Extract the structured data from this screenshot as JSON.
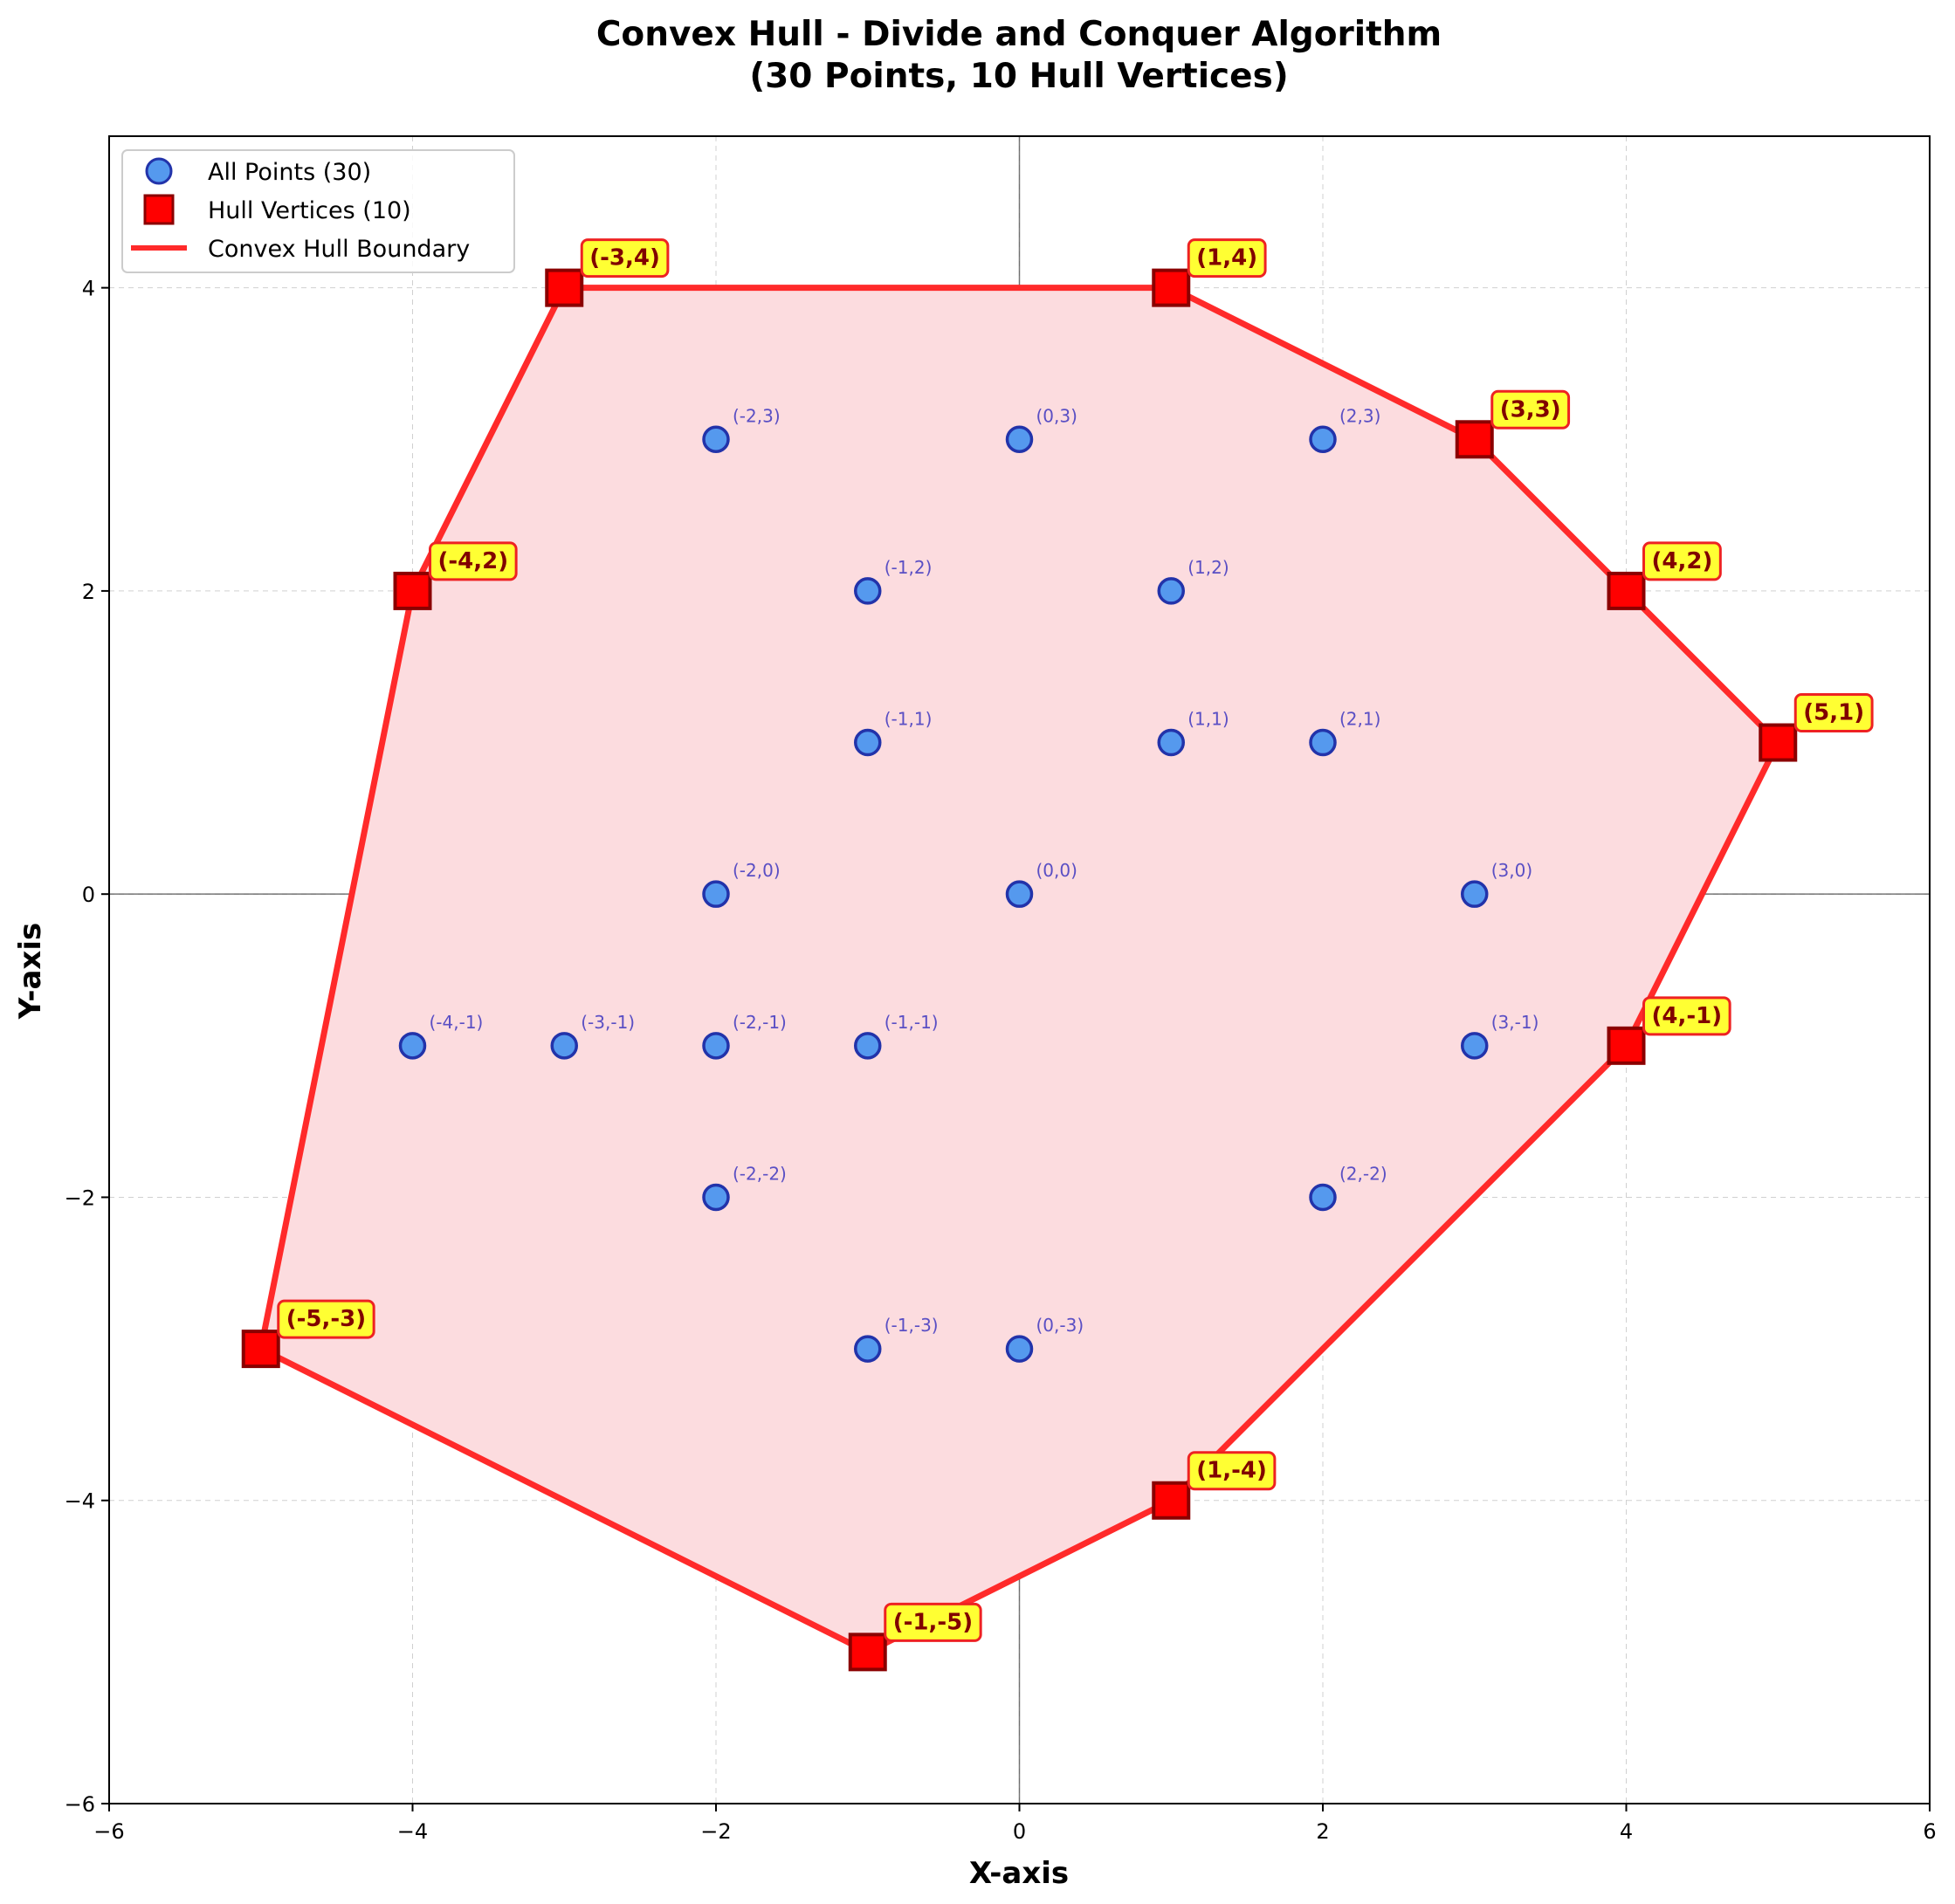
{
  "chart_data": {
    "type": "scatter",
    "title": "Convex Hull - Divide and Conquer Algorithm",
    "subtitle": "(30 Points, 10 Hull Vertices)",
    "xlabel": "X-axis",
    "ylabel": "Y-axis",
    "xlim": [
      -6,
      6
    ],
    "ylim": [
      -6,
      5
    ],
    "xticks": [
      -6,
      -4,
      -2,
      0,
      2,
      4,
      6
    ],
    "yticks": [
      -6,
      -4,
      -2,
      0,
      2,
      4
    ],
    "xtick_labels": [
      "−6",
      "−4",
      "−2",
      "0",
      "2",
      "4",
      "6"
    ],
    "ytick_labels": [
      "−6",
      "−4",
      "−2",
      "0",
      "2",
      "4"
    ],
    "grid": true,
    "legend_position": "top-left",
    "legend": [
      {
        "label": "All Points (30)",
        "marker": "circle"
      },
      {
        "label": "Hull Vertices (10)",
        "marker": "square"
      },
      {
        "label": "Convex Hull Boundary",
        "marker": "line"
      }
    ],
    "colors": {
      "point_fill": "#5599ee",
      "point_edge": "#2233aa",
      "hull_fill": "#ff0000",
      "hull_edge": "#8b0000",
      "boundary": "#ff2a2a",
      "hull_area": "#fcdcdf",
      "hull_label_bg": "#ffff33",
      "hull_label_border": "#ee2222",
      "hull_label_text": "#800000",
      "point_label_text": "#5a4fc4"
    },
    "points": [
      {
        "x": -2,
        "y": 3,
        "label": "(-2,3)"
      },
      {
        "x": 0,
        "y": 3,
        "label": "(0,3)"
      },
      {
        "x": 2,
        "y": 3,
        "label": "(2,3)"
      },
      {
        "x": -1,
        "y": 2,
        "label": "(-1,2)"
      },
      {
        "x": 1,
        "y": 2,
        "label": "(1,2)"
      },
      {
        "x": -1,
        "y": 1,
        "label": "(-1,1)"
      },
      {
        "x": 1,
        "y": 1,
        "label": "(1,1)"
      },
      {
        "x": 2,
        "y": 1,
        "label": "(2,1)"
      },
      {
        "x": -2,
        "y": 0,
        "label": "(-2,0)"
      },
      {
        "x": 0,
        "y": 0,
        "label": "(0,0)"
      },
      {
        "x": 3,
        "y": 0,
        "label": "(3,0)"
      },
      {
        "x": -4,
        "y": -1,
        "label": "(-4,-1)"
      },
      {
        "x": -3,
        "y": -1,
        "label": "(-3,-1)"
      },
      {
        "x": -2,
        "y": -1,
        "label": "(-2,-1)"
      },
      {
        "x": -1,
        "y": -1,
        "label": "(-1,-1)"
      },
      {
        "x": 3,
        "y": -1,
        "label": "(3,-1)"
      },
      {
        "x": -2,
        "y": -2,
        "label": "(-2,-2)"
      },
      {
        "x": 2,
        "y": -2,
        "label": "(2,-2)"
      },
      {
        "x": -1,
        "y": -3,
        "label": "(-1,-3)"
      },
      {
        "x": 0,
        "y": -3,
        "label": "(0,-3)"
      }
    ],
    "hull_vertices": [
      {
        "x": -3,
        "y": 4,
        "label": "(-3,4)"
      },
      {
        "x": 1,
        "y": 4,
        "label": "(1,4)"
      },
      {
        "x": 3,
        "y": 3,
        "label": "(3,3)"
      },
      {
        "x": 4,
        "y": 2,
        "label": "(4,2)"
      },
      {
        "x": 5,
        "y": 1,
        "label": "(5,1)"
      },
      {
        "x": 4,
        "y": -1,
        "label": "(4,-1)"
      },
      {
        "x": 1,
        "y": -4,
        "label": "(1,-4)"
      },
      {
        "x": -1,
        "y": -5,
        "label": "(-1,-5)"
      },
      {
        "x": -5,
        "y": -3,
        "label": "(-5,-3)"
      },
      {
        "x": -4,
        "y": 2,
        "label": "(-4,2)"
      }
    ]
  }
}
